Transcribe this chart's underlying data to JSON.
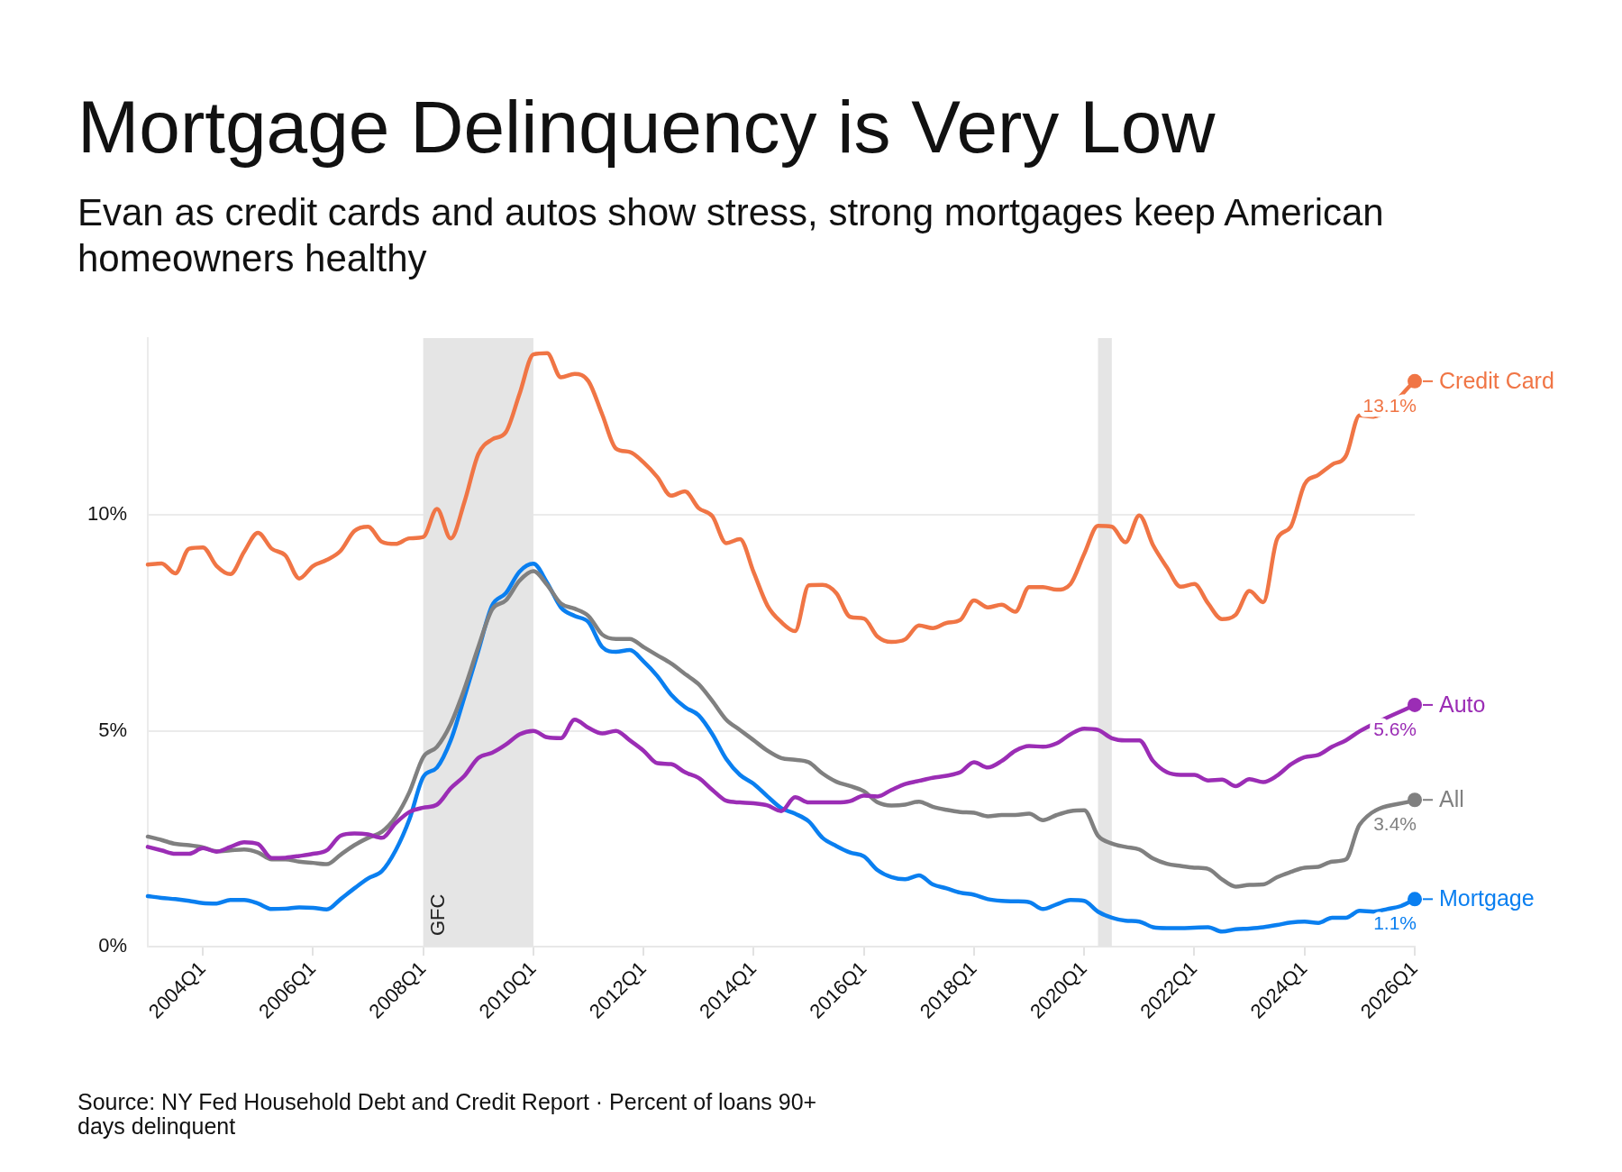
{
  "chart_data": {
    "type": "line",
    "title": "Mortgage Delinquency is Very Low",
    "subtitle": "Evan as credit cards and autos show stress, strong mortgages keep American homeowners healthy",
    "annotations": [
      "Source: NY Fed Household Debt and Credit Report · Percent of loans 90+ days delinquent"
    ],
    "x": [
      "2003-01",
      "2003-04",
      "2003-07",
      "2003-10",
      "2004-01",
      "2004-04",
      "2004-07",
      "2004-10",
      "2005-01",
      "2005-04",
      "2005-07",
      "2005-10",
      "2006-01",
      "2006-04",
      "2006-07",
      "2006-10",
      "2007-01",
      "2007-04",
      "2007-07",
      "2007-10",
      "2008-01",
      "2008-04",
      "2008-07",
      "2008-10",
      "2009-01",
      "2009-04",
      "2009-07",
      "2009-10",
      "2010-01",
      "2010-04",
      "2010-07",
      "2010-10",
      "2011-01",
      "2011-04",
      "2011-07",
      "2011-10",
      "2012-01",
      "2012-04",
      "2012-07",
      "2012-10",
      "2013-01",
      "2013-04",
      "2013-07",
      "2013-10",
      "2014-01",
      "2014-04",
      "2014-07",
      "2014-10",
      "2015-01",
      "2015-04",
      "2015-07",
      "2015-10",
      "2016-01",
      "2016-04",
      "2016-07",
      "2016-10",
      "2017-01",
      "2017-04",
      "2017-07",
      "2017-10",
      "2018-01",
      "2018-04",
      "2018-07",
      "2018-10",
      "2019-01",
      "2019-04",
      "2019-07",
      "2019-10",
      "2020-01",
      "2020-04",
      "2020-07",
      "2020-10",
      "2021-01",
      "2021-04",
      "2021-07",
      "2021-10",
      "2022-01",
      "2022-04",
      "2022-07",
      "2022-10",
      "2023-01",
      "2023-04",
      "2023-07",
      "2023-10",
      "2024-01",
      "2024-04",
      "2024-07",
      "2024-10",
      "2025-01",
      "2025-04",
      "2025-07",
      "2025-10",
      "2026-01"
    ],
    "series": [
      {
        "name": "Credit Card",
        "color": "#f07545",
        "x": [
          "2003-01",
          "2003-04",
          "2003-07",
          "2003-10",
          "2004-01",
          "2004-04",
          "2004-07",
          "2004-10",
          "2005-01",
          "2005-04",
          "2005-07",
          "2005-10",
          "2006-01",
          "2006-04",
          "2006-07",
          "2006-10",
          "2007-01",
          "2007-04",
          "2007-07",
          "2007-10",
          "2008-01",
          "2008-04",
          "2008-07",
          "2008-10",
          "2009-01",
          "2009-04",
          "2009-07",
          "2009-10",
          "2010-01",
          "2010-04",
          "2010-07",
          "2010-10",
          "2011-01",
          "2011-04",
          "2011-07",
          "2011-10",
          "2012-01",
          "2012-04",
          "2012-07",
          "2012-10",
          "2013-01",
          "2013-04",
          "2013-07",
          "2013-10",
          "2014-01",
          "2014-04",
          "2014-07",
          "2014-10",
          "2015-01",
          "2015-04",
          "2015-07",
          "2015-10",
          "2016-01",
          "2016-04",
          "2016-07",
          "2016-10",
          "2017-01",
          "2017-04",
          "2017-07",
          "2017-10",
          "2018-01",
          "2018-04",
          "2018-07",
          "2018-10",
          "2019-01",
          "2019-04",
          "2019-07",
          "2019-10",
          "2020-01",
          "2020-04",
          "2020-07",
          "2020-10",
          "2021-01",
          "2021-04",
          "2021-07",
          "2021-10",
          "2022-01",
          "2022-04",
          "2022-07",
          "2022-10",
          "2023-01",
          "2023-04",
          "2023-07",
          "2023-10",
          "2024-01",
          "2024-04",
          "2024-07",
          "2024-10",
          "2025-01",
          "2025-04",
          "2026-01"
        ],
        "values": [
          8.85,
          8.88,
          8.65,
          9.22,
          9.25,
          8.82,
          8.63,
          9.15,
          9.59,
          9.22,
          9.06,
          8.53,
          8.82,
          8.96,
          9.17,
          9.63,
          9.73,
          9.38,
          9.33,
          9.46,
          9.49,
          10.14,
          9.46,
          10.31,
          11.41,
          11.75,
          11.92,
          12.81,
          13.72,
          13.75,
          13.19,
          13.27,
          13.1,
          12.33,
          11.54,
          11.46,
          11.22,
          10.88,
          10.45,
          10.55,
          10.16,
          9.97,
          9.35,
          9.44,
          8.67,
          7.9,
          7.52,
          7.31,
          8.37,
          8.38,
          8.19,
          7.64,
          7.6,
          7.18,
          7.06,
          7.12,
          7.44,
          7.38,
          7.5,
          7.57,
          8.02,
          7.86,
          7.92,
          7.76,
          8.33,
          8.33,
          8.27,
          8.4,
          9.1,
          9.75,
          9.73,
          9.37,
          9.99,
          9.3,
          8.79,
          8.34,
          8.4,
          7.95,
          7.59,
          7.69,
          8.24,
          7.98,
          9.44,
          9.73,
          10.71,
          10.93,
          11.17,
          11.37,
          12.31,
          12.28,
          13.1
        ],
        "value_labels": [
          null,
          null,
          null,
          null,
          null,
          null,
          null,
          null,
          null,
          null,
          null,
          null,
          null,
          null,
          null,
          null,
          null,
          null,
          null,
          null,
          null,
          null,
          null,
          null,
          null,
          null,
          null,
          null,
          null,
          null,
          null,
          null,
          null,
          null,
          null,
          null,
          null,
          null,
          null,
          null,
          null,
          null,
          null,
          null,
          null,
          null,
          null,
          null,
          null,
          null,
          null,
          null,
          null,
          null,
          null,
          null,
          null,
          null,
          null,
          null,
          null,
          null,
          null,
          null,
          null,
          null,
          null,
          null,
          null,
          null,
          null,
          null,
          null,
          null,
          null,
          null,
          null,
          null,
          null,
          null,
          null,
          null,
          null,
          null,
          null,
          null,
          null,
          null,
          null,
          null,
          "13.1%"
        ]
      },
      {
        "name": "Auto",
        "color": "#9b2db5",
        "x": [
          "2003-01",
          "2003-04",
          "2003-07",
          "2003-10",
          "2004-01",
          "2004-04",
          "2004-07",
          "2004-10",
          "2005-01",
          "2005-04",
          "2005-07",
          "2005-10",
          "2006-01",
          "2006-04",
          "2006-07",
          "2006-10",
          "2007-01",
          "2007-04",
          "2007-07",
          "2007-10",
          "2008-01",
          "2008-04",
          "2008-07",
          "2008-10",
          "2009-01",
          "2009-04",
          "2009-07",
          "2009-10",
          "2010-01",
          "2010-04",
          "2010-07",
          "2010-10",
          "2011-01",
          "2011-04",
          "2011-07",
          "2011-10",
          "2012-01",
          "2012-04",
          "2012-07",
          "2012-10",
          "2013-01",
          "2013-04",
          "2013-07",
          "2013-10",
          "2014-01",
          "2014-04",
          "2014-07",
          "2014-10",
          "2015-01",
          "2015-04",
          "2015-07",
          "2015-10",
          "2016-01",
          "2016-04",
          "2016-07",
          "2016-10",
          "2017-01",
          "2017-04",
          "2017-07",
          "2017-10",
          "2018-01",
          "2018-04",
          "2018-07",
          "2018-10",
          "2019-01",
          "2019-04",
          "2019-07",
          "2019-10",
          "2020-01",
          "2020-04",
          "2020-07",
          "2020-10",
          "2021-01",
          "2021-04",
          "2021-07",
          "2021-10",
          "2022-01",
          "2022-04",
          "2022-07",
          "2022-10",
          "2023-01",
          "2023-04",
          "2023-07",
          "2023-10",
          "2024-01",
          "2024-04",
          "2024-07",
          "2024-10",
          "2025-01",
          "2026-01"
        ],
        "values": [
          2.31,
          2.23,
          2.15,
          2.15,
          2.28,
          2.2,
          2.31,
          2.42,
          2.38,
          2.05,
          2.06,
          2.1,
          2.15,
          2.23,
          2.57,
          2.62,
          2.6,
          2.52,
          2.86,
          3.12,
          3.22,
          3.29,
          3.67,
          3.96,
          4.37,
          4.49,
          4.68,
          4.92,
          5.0,
          4.85,
          4.83,
          5.26,
          5.07,
          4.94,
          5.0,
          4.78,
          4.54,
          4.25,
          4.23,
          4.04,
          3.91,
          3.63,
          3.38,
          3.34,
          3.32,
          3.27,
          3.14,
          3.46,
          3.34,
          3.34,
          3.34,
          3.37,
          3.5,
          3.48,
          3.63,
          3.77,
          3.84,
          3.91,
          3.96,
          4.04,
          4.27,
          4.15,
          4.3,
          4.54,
          4.65,
          4.63,
          4.71,
          4.92,
          5.05,
          5.02,
          4.83,
          4.78,
          4.78,
          4.3,
          4.04,
          3.98,
          3.98,
          3.85,
          3.87,
          3.72,
          3.88,
          3.81,
          3.96,
          4.22,
          4.39,
          4.44,
          4.63,
          4.78,
          4.99,
          5.6
        ],
        "value_labels": [
          null,
          null,
          null,
          null,
          null,
          null,
          null,
          null,
          null,
          null,
          null,
          null,
          null,
          null,
          null,
          null,
          null,
          null,
          null,
          null,
          null,
          null,
          null,
          null,
          null,
          null,
          null,
          null,
          null,
          null,
          null,
          null,
          null,
          null,
          null,
          null,
          null,
          null,
          null,
          null,
          null,
          null,
          null,
          null,
          null,
          null,
          null,
          null,
          null,
          null,
          null,
          null,
          null,
          null,
          null,
          null,
          null,
          null,
          null,
          null,
          null,
          null,
          null,
          null,
          null,
          null,
          null,
          null,
          null,
          null,
          null,
          null,
          null,
          null,
          null,
          null,
          null,
          null,
          null,
          null,
          null,
          null,
          null,
          null,
          null,
          null,
          null,
          null,
          null,
          "5.6%"
        ]
      },
      {
        "name": "All",
        "color": "#808080",
        "x": [
          "2003-01",
          "2003-04",
          "2003-07",
          "2003-10",
          "2004-01",
          "2004-04",
          "2004-07",
          "2004-10",
          "2005-01",
          "2005-04",
          "2005-07",
          "2005-10",
          "2006-01",
          "2006-04",
          "2006-07",
          "2006-10",
          "2007-01",
          "2007-04",
          "2007-07",
          "2007-10",
          "2008-01",
          "2008-04",
          "2008-07",
          "2008-10",
          "2009-01",
          "2009-04",
          "2009-07",
          "2009-10",
          "2010-01",
          "2010-04",
          "2010-07",
          "2010-10",
          "2011-01",
          "2011-04",
          "2011-07",
          "2011-10",
          "2012-01",
          "2012-04",
          "2012-07",
          "2012-10",
          "2013-01",
          "2013-04",
          "2013-07",
          "2013-10",
          "2014-01",
          "2014-04",
          "2014-07",
          "2014-10",
          "2015-01",
          "2015-04",
          "2015-07",
          "2015-10",
          "2016-01",
          "2016-04",
          "2016-07",
          "2016-10",
          "2017-01",
          "2017-04",
          "2017-07",
          "2017-10",
          "2018-01",
          "2018-04",
          "2018-07",
          "2018-10",
          "2019-01",
          "2019-04",
          "2019-07",
          "2019-10",
          "2020-01",
          "2020-04",
          "2020-07",
          "2020-10",
          "2021-01",
          "2021-04",
          "2021-07",
          "2021-10",
          "2022-01",
          "2022-04",
          "2022-07",
          "2022-10",
          "2023-01",
          "2023-04",
          "2023-07",
          "2023-10",
          "2024-01",
          "2024-04",
          "2024-07",
          "2024-10",
          "2025-01",
          "2026-01"
        ],
        "values": [
          2.55,
          2.47,
          2.38,
          2.35,
          2.3,
          2.21,
          2.23,
          2.25,
          2.18,
          2.02,
          2.02,
          1.97,
          1.94,
          1.91,
          2.13,
          2.35,
          2.52,
          2.66,
          3.0,
          3.58,
          4.39,
          4.63,
          5.16,
          5.98,
          6.94,
          7.81,
          8.02,
          8.48,
          8.7,
          8.38,
          7.95,
          7.83,
          7.66,
          7.23,
          7.13,
          7.13,
          6.94,
          6.75,
          6.56,
          6.32,
          6.08,
          5.69,
          5.26,
          5.02,
          4.78,
          4.54,
          4.37,
          4.33,
          4.27,
          4.01,
          3.82,
          3.72,
          3.6,
          3.34,
          3.27,
          3.29,
          3.36,
          3.24,
          3.17,
          3.12,
          3.1,
          3.02,
          3.05,
          3.05,
          3.08,
          2.93,
          3.05,
          3.14,
          3.16,
          2.57,
          2.39,
          2.31,
          2.25,
          2.04,
          1.92,
          1.87,
          1.83,
          1.8,
          1.56,
          1.39,
          1.43,
          1.44,
          1.61,
          1.73,
          1.83,
          1.85,
          1.97,
          2.02,
          2.83,
          3.4
        ],
        "value_labels": [
          null,
          null,
          null,
          null,
          null,
          null,
          null,
          null,
          null,
          null,
          null,
          null,
          null,
          null,
          null,
          null,
          null,
          null,
          null,
          null,
          null,
          null,
          null,
          null,
          null,
          null,
          null,
          null,
          null,
          null,
          null,
          null,
          null,
          null,
          null,
          null,
          null,
          null,
          null,
          null,
          null,
          null,
          null,
          null,
          null,
          null,
          null,
          null,
          null,
          null,
          null,
          null,
          null,
          null,
          null,
          null,
          null,
          null,
          null,
          null,
          null,
          null,
          null,
          null,
          null,
          null,
          null,
          null,
          null,
          null,
          null,
          null,
          null,
          null,
          null,
          null,
          null,
          null,
          null,
          null,
          null,
          null,
          null,
          null,
          null,
          null,
          null,
          null,
          null,
          "3.4%"
        ]
      },
      {
        "name": "Mortgage",
        "color": "#0a7ff0",
        "values": [
          1.17,
          1.13,
          1.1,
          1.06,
          1.01,
          1.0,
          1.08,
          1.08,
          1.0,
          0.87,
          0.88,
          0.91,
          0.9,
          0.86,
          1.1,
          1.35,
          1.58,
          1.75,
          2.23,
          2.95,
          3.93,
          4.15,
          4.78,
          5.79,
          6.85,
          7.9,
          8.19,
          8.69,
          8.87,
          8.43,
          7.86,
          7.66,
          7.52,
          6.94,
          6.83,
          6.87,
          6.61,
          6.27,
          5.84,
          5.55,
          5.36,
          4.92,
          4.35,
          3.98,
          3.77,
          3.48,
          3.21,
          3.08,
          2.9,
          2.52,
          2.33,
          2.18,
          2.09,
          1.77,
          1.61,
          1.56,
          1.65,
          1.44,
          1.35,
          1.25,
          1.2,
          1.1,
          1.06,
          1.05,
          1.03,
          0.87,
          0.98,
          1.08,
          1.06,
          0.81,
          0.67,
          0.6,
          0.58,
          0.45,
          0.43,
          0.43,
          0.44,
          0.45,
          0.35,
          0.4,
          0.42,
          0.45,
          0.5,
          0.56,
          0.58,
          0.55,
          0.67,
          0.67,
          0.83,
          0.81,
          0.87,
          0.94,
          1.1
        ],
        "value_labels": [
          null,
          null,
          null,
          null,
          null,
          null,
          null,
          null,
          null,
          null,
          null,
          null,
          null,
          null,
          null,
          null,
          null,
          null,
          null,
          null,
          null,
          null,
          null,
          null,
          null,
          null,
          null,
          null,
          null,
          null,
          null,
          null,
          null,
          null,
          null,
          null,
          null,
          null,
          null,
          null,
          null,
          null,
          null,
          null,
          null,
          null,
          null,
          null,
          null,
          null,
          null,
          null,
          null,
          null,
          null,
          null,
          null,
          null,
          null,
          null,
          null,
          null,
          null,
          null,
          null,
          null,
          null,
          null,
          null,
          null,
          null,
          null,
          null,
          null,
          null,
          null,
          null,
          null,
          null,
          null,
          null,
          null,
          null,
          null,
          null,
          null,
          null,
          null,
          null,
          null,
          null,
          null,
          "1.1%"
        ]
      }
    ],
    "xlim": [
      "2003-01",
      "2026-01"
    ],
    "xticks": [
      {
        "value": "2004-01",
        "label": "2004Q1"
      },
      {
        "value": "2006-01",
        "label": "2006Q1"
      },
      {
        "value": "2008-01",
        "label": "2008Q1"
      },
      {
        "value": "2010-01",
        "label": "2010Q1"
      },
      {
        "value": "2012-01",
        "label": "2012Q1"
      },
      {
        "value": "2014-01",
        "label": "2014Q1"
      },
      {
        "value": "2016-01",
        "label": "2016Q1"
      },
      {
        "value": "2018-01",
        "label": "2018Q1"
      },
      {
        "value": "2020-01",
        "label": "2020Q1"
      },
      {
        "value": "2022-01",
        "label": "2022Q1"
      },
      {
        "value": "2024-01",
        "label": "2024Q1"
      },
      {
        "value": "2026-01",
        "label": "2026Q1"
      }
    ],
    "ylim": [
      0,
      14.1
    ],
    "yticks": [
      {
        "value": 0,
        "label": "0%"
      },
      {
        "value": 5,
        "label": "5%"
      },
      {
        "value": 10,
        "label": "10%"
      }
    ],
    "grid": "y",
    "bands": [
      {
        "axis": "x",
        "from": "2008-01",
        "to": "2010-01",
        "label": "GFC",
        "color": "#e5e5e5"
      },
      {
        "axis": "x",
        "from": "2020-04",
        "to": "2020-07",
        "color": "#e5e5e5"
      }
    ]
  }
}
